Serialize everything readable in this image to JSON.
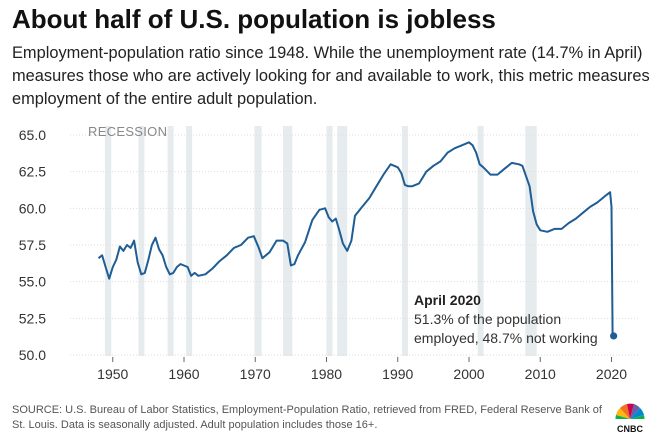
{
  "title": "About half of U.S. population is jobless",
  "subtitle": "Employment-population ratio since 1948. While the unemployment rate (14.7% in April) measures those who are actively looking for and available to work, this metric measures employment of the entire adult population.",
  "footer": "SOURCE: U.S. Bureau of Labor Statistics, Employment-Population Ratio, retrieved from FRED, Federal Reserve Bank of St. Louis. Data is seasonally adjusted. Adult population includes those 16+.",
  "logo_text": "CNBC",
  "colors": {
    "line": "#1f5d94",
    "recession": "#e6ebee",
    "grid": "#dddddd"
  },
  "chart_data": {
    "type": "line",
    "title": "",
    "xlabel": "",
    "ylabel": "",
    "xlim": [
      1944,
      2024
    ],
    "ylim": [
      50.0,
      65.0
    ],
    "yticks": [
      50.0,
      52.5,
      55.0,
      57.5,
      60.0,
      62.5,
      65.0
    ],
    "ytick_labels": [
      "50.0",
      "52.5",
      "55.0",
      "57.5",
      "60.0",
      "62.5",
      "65.0"
    ],
    "xticks": [
      1950,
      1960,
      1970,
      1980,
      1990,
      2000,
      2010,
      2020
    ],
    "xtick_labels": [
      "1950",
      "1960",
      "1970",
      "1980",
      "1990",
      "2000",
      "2010",
      "2020"
    ],
    "recession_label": "RECESSION",
    "recessions": [
      [
        1948.9,
        1949.8
      ],
      [
        1953.6,
        1954.4
      ],
      [
        1957.7,
        1958.4
      ],
      [
        1960.3,
        1961.1
      ],
      [
        1969.9,
        1970.9
      ],
      [
        1973.9,
        1975.2
      ],
      [
        1980.0,
        1980.5
      ],
      [
        1981.5,
        1982.9
      ],
      [
        1990.6,
        1991.2
      ],
      [
        2001.2,
        2001.9
      ],
      [
        2007.9,
        2009.5
      ]
    ],
    "series": [
      {
        "name": "",
        "x": [
          1948.0,
          1948.5,
          1949.0,
          1949.5,
          1950.0,
          1950.5,
          1951.0,
          1951.5,
          1952.0,
          1952.5,
          1953.0,
          1953.5,
          1954.0,
          1954.5,
          1955.0,
          1955.5,
          1956.0,
          1956.5,
          1957.0,
          1957.5,
          1958.0,
          1958.5,
          1959.0,
          1959.5,
          1960.0,
          1960.5,
          1961.0,
          1961.5,
          1962.0,
          1963.0,
          1964.0,
          1965.0,
          1966.0,
          1967.0,
          1968.0,
          1969.0,
          1969.8,
          1970.5,
          1971.0,
          1972.0,
          1973.0,
          1973.9,
          1974.5,
          1975.0,
          1975.5,
          1976.0,
          1977.0,
          1978.0,
          1979.0,
          1979.8,
          1980.3,
          1980.8,
          1981.3,
          1981.8,
          1982.3,
          1982.9,
          1983.5,
          1984.0,
          1985.0,
          1986.0,
          1987.0,
          1988.0,
          1989.0,
          1990.0,
          1990.5,
          1991.0,
          1991.5,
          1992.0,
          1993.0,
          1994.0,
          1995.0,
          1996.0,
          1997.0,
          1998.0,
          1999.0,
          2000.0,
          2000.5,
          2001.0,
          2001.5,
          2002.0,
          2003.0,
          2004.0,
          2005.0,
          2006.0,
          2007.0,
          2007.5,
          2008.0,
          2008.5,
          2009.0,
          2009.5,
          2010.0,
          2011.0,
          2012.0,
          2013.0,
          2014.0,
          2015.0,
          2016.0,
          2017.0,
          2018.0,
          2019.0,
          2019.8,
          2020.0,
          2020.15,
          2020.3
        ],
        "values": [
          56.6,
          56.8,
          56.0,
          55.2,
          56.0,
          56.5,
          57.4,
          57.1,
          57.5,
          57.3,
          57.8,
          56.3,
          55.5,
          55.6,
          56.5,
          57.5,
          58.0,
          57.2,
          56.8,
          56.0,
          55.5,
          55.6,
          56.0,
          56.2,
          56.1,
          56.0,
          55.4,
          55.6,
          55.4,
          55.5,
          55.9,
          56.4,
          56.8,
          57.3,
          57.5,
          58.0,
          58.1,
          57.3,
          56.6,
          57.0,
          57.8,
          57.8,
          57.6,
          56.1,
          56.2,
          56.8,
          57.7,
          59.2,
          59.9,
          60.0,
          59.4,
          59.1,
          59.3,
          58.5,
          57.6,
          57.1,
          57.8,
          59.5,
          60.1,
          60.7,
          61.5,
          62.3,
          63.0,
          62.8,
          62.4,
          61.6,
          61.5,
          61.5,
          61.7,
          62.5,
          62.9,
          63.2,
          63.8,
          64.1,
          64.3,
          64.5,
          64.3,
          63.8,
          63.0,
          62.8,
          62.3,
          62.3,
          62.7,
          63.1,
          63.0,
          62.9,
          62.2,
          61.5,
          59.8,
          58.9,
          58.5,
          58.4,
          58.6,
          58.6,
          59.0,
          59.3,
          59.7,
          60.1,
          60.4,
          60.8,
          61.1,
          60.1,
          51.3,
          51.3
        ]
      }
    ],
    "annotation": {
      "x": 2020.3,
      "y": 51.3,
      "title": "April 2020",
      "lines": [
        "51.3% of the population",
        "employed, 48.7% not working"
      ]
    }
  }
}
